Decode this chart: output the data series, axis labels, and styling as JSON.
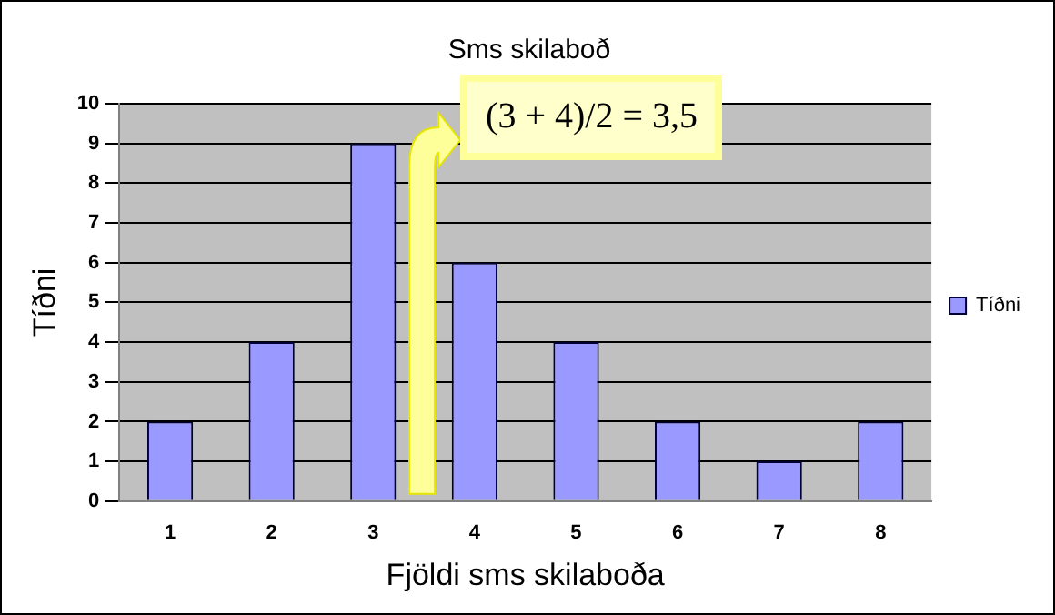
{
  "chart_data": {
    "type": "bar",
    "title": "Sms skilaboð",
    "xlabel": "Fjöldi sms skilaboða",
    "ylabel": "Tíðni",
    "categories": [
      "1",
      "2",
      "3",
      "4",
      "5",
      "6",
      "7",
      "8"
    ],
    "series": [
      {
        "name": "Tíðni",
        "color": "#9999ff",
        "values": [
          2,
          4,
          9,
          6,
          4,
          2,
          1,
          2
        ]
      }
    ],
    "ylim": [
      0,
      10
    ],
    "yticks": [
      0,
      1,
      2,
      3,
      4,
      5,
      6,
      7,
      8,
      9,
      10
    ],
    "grid": "y",
    "legend": "right",
    "annotations": [
      "(3 + 4)/2 = 3,5"
    ]
  }
}
